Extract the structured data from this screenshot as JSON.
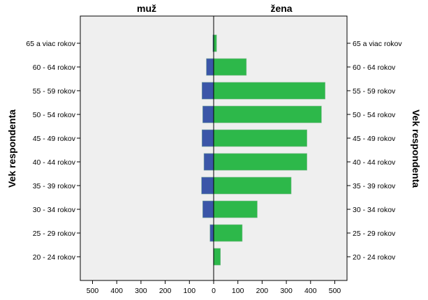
{
  "chart_data": {
    "type": "bar",
    "orientation": "horizontal",
    "subtype": "population-pyramid",
    "categories": [
      "65 a viac rokov",
      "60 - 64 rokov",
      "55 - 59 rokov",
      "50 - 54 rokov",
      "45 - 49 rokov",
      "40 - 44 rokov",
      "35 - 39 rokov",
      "30 - 34 rokov",
      "25 - 29 rokov",
      "20 - 24 rokov"
    ],
    "series": [
      {
        "name": "muž",
        "color": "#3b56a8",
        "values": [
          3,
          30,
          48,
          45,
          48,
          40,
          50,
          45,
          15,
          1
        ]
      },
      {
        "name": "žena",
        "color": "#2db84a",
        "values": [
          12,
          135,
          460,
          445,
          385,
          385,
          320,
          180,
          118,
          28
        ]
      }
    ],
    "ylabel": "Vek respondenta",
    "xticks": [
      500,
      400,
      300,
      200,
      100,
      0,
      100,
      200,
      300,
      400,
      500
    ],
    "xlim": [
      -550,
      550
    ],
    "grid": false,
    "plot_background": "#efefef"
  }
}
